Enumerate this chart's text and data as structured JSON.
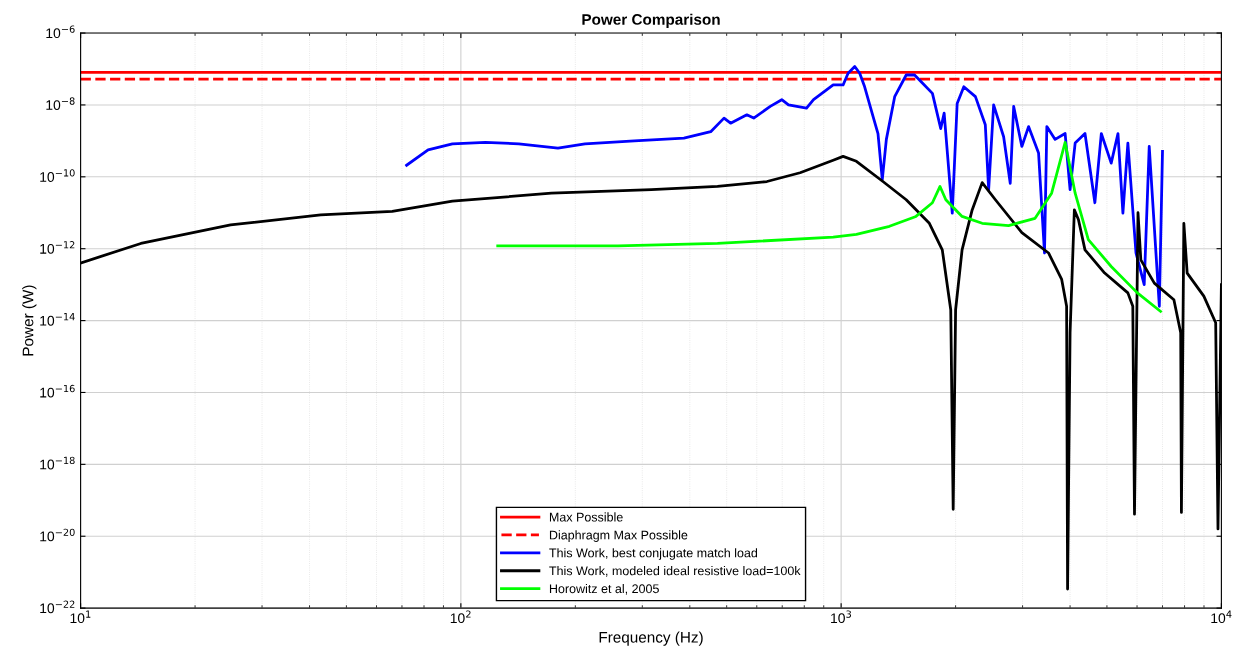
{
  "chart_data": {
    "type": "line",
    "title": "Power Comparison",
    "xlabel": "Frequency (Hz)",
    "ylabel": "Power (W)",
    "log": "xy",
    "grid": true,
    "legend": "bottom",
    "xlim": [
      10,
      10000
    ],
    "xticks": [
      {
        "value": 10,
        "label": "10$^{1}$"
      },
      {
        "value": 100,
        "label": "10$^{2}$"
      },
      {
        "value": 1000,
        "label": "10$^{3}$"
      },
      {
        "value": 10000,
        "label": "10$^{4}$"
      }
    ],
    "ylim": [
      1e-22,
      1e-06
    ],
    "yticks": [
      {
        "value": 1e-22,
        "label": "10$^{−22}$"
      },
      {
        "value": 1e-20,
        "label": "10$^{−20}$"
      },
      {
        "value": 1e-18,
        "label": "10$^{−18}$"
      },
      {
        "value": 1e-16,
        "label": "10$^{−16}$"
      },
      {
        "value": 1e-14,
        "label": "10$^{−14}$"
      },
      {
        "value": 1e-12,
        "label": "10$^{−12}$"
      },
      {
        "value": 1e-10,
        "label": "10$^{−10}$"
      },
      {
        "value": 1e-08,
        "label": "10$^{−8}$"
      },
      {
        "value": 1e-06,
        "label": "10$^{−6}$"
      }
    ],
    "ref_lines": [
      {
        "axis": "y",
        "value": 8e-08,
        "label": "Max Possible",
        "color": "#ff0000",
        "line_style": "solid"
      },
      {
        "axis": "y",
        "value": 5.2e-08,
        "label": "Diaphragm Max Possible",
        "color": "#ff0000",
        "line_style": "dashed"
      }
    ],
    "series": [
      {
        "name": "This Work, best conjugate match load",
        "color": "#0000ff",
        "x": [
          72,
          82,
          95,
          116,
          142,
          180,
          212,
          286,
          386,
          454,
          492,
          512,
          565,
          589,
          651,
          698,
          727,
          811,
          846,
          953,
          1012,
          1043,
          1086,
          1119,
          1153,
          1213,
          1250,
          1283,
          1315,
          1383,
          1483,
          1560,
          1638,
          1738,
          1828,
          1866,
          1960,
          2019,
          2102,
          2255,
          2394,
          2443,
          2518,
          2675,
          2784,
          2843,
          2987,
          3111,
          3305,
          3426,
          3475,
          3654,
          3882,
          4000,
          4125,
          4378,
          4648,
          4833,
          5131,
          5346,
          5508,
          5676,
          5962,
          6266,
          6459,
          6867,
          7000
        ],
        "values": [
          2.1e-10,
          5.6e-10,
          8.3e-10,
          9.1e-10,
          8.3e-10,
          6.3e-10,
          8.3e-10,
          1e-09,
          1.2e-09,
          1.8e-09,
          4.3e-09,
          3.1e-09,
          5.3e-09,
          4.3e-09,
          9.1e-09,
          1.4e-08,
          1e-08,
          8.1e-09,
          1.4e-08,
          3.6e-08,
          3.6e-08,
          7.6e-08,
          1.17e-07,
          7.6e-08,
          3.2e-08,
          4.8e-09,
          1.6e-09,
          8.3e-11,
          1.1e-09,
          1.7e-08,
          6.8e-08,
          6.8e-08,
          4e-08,
          2.1e-08,
          2.2e-09,
          5.9e-09,
          9.8e-12,
          1.1e-08,
          3.2e-08,
          1.7e-08,
          2.8e-09,
          4.4e-11,
          1e-08,
          1.3e-09,
          6.6e-11,
          9.1e-09,
          7e-10,
          2.5e-09,
          4.6e-10,
          7.6e-13,
          2.5e-09,
          1.1e-09,
          1.6e-09,
          4.4e-11,
          8.7e-10,
          1.6e-09,
          1.9e-11,
          1.6e-09,
          2.4e-10,
          1.6e-09,
          9.8e-12,
          8.7e-10,
          7.6e-13,
          1e-13,
          7e-10,
          2.5e-14,
          5.1e-10
        ]
      },
      {
        "name": "This Work, modeled ideal resistive load=100k",
        "color": "#000000",
        "x": [
          10,
          14.4,
          24.8,
          42.8,
          66,
          95,
          173,
          317,
          473,
          638,
          780,
          953,
          1012,
          1097,
          1288,
          1483,
          1706,
          1845,
          1942,
          1971,
          2000,
          2080,
          2211,
          2349,
          2545,
          2987,
          3511,
          3802,
          3917,
          3940,
          4000,
          4105,
          4207,
          4378,
          4932,
          5676,
          5848,
          5908,
          6035,
          6139,
          6662,
          7500,
          7816,
          7850,
          7966,
          8128,
          8990,
          9660,
          9795,
          10000
        ],
        "values": [
          4e-13,
          1.4e-12,
          4.6e-12,
          8.7e-12,
          1.1e-11,
          2.1e-11,
          3.5e-11,
          4.4e-11,
          5.4e-11,
          7.4e-11,
          1.3e-10,
          2.9e-10,
          3.7e-10,
          2.7e-10,
          7.4e-11,
          2.3e-11,
          5.1e-12,
          9.3e-13,
          2e-14,
          5.6e-20,
          2e-14,
          9.3e-13,
          1.2e-11,
          6.9e-11,
          2.3e-11,
          2.8e-12,
          7.6e-13,
          1.4e-13,
          2.5e-14,
          3.4e-22,
          4.6e-15,
          1.2e-11,
          6.5e-12,
          9.3e-13,
          2.1e-13,
          5.9e-14,
          2.5e-14,
          4.1e-20,
          1e-11,
          4.9e-13,
          1.1e-13,
          3.8e-14,
          4.6e-15,
          4.6e-20,
          5.1e-12,
          2.1e-13,
          4.8e-14,
          8.7e-15,
          1.6e-20,
          1e-13
        ]
      },
      {
        "name": "Horowitz et al, 2005",
        "color": "#00ff00",
        "x": [
          125,
          259,
          473,
          953,
          1097,
          1340,
          1573,
          1738,
          1820,
          1885,
          2080,
          2349,
          2757,
          3236,
          3577,
          3882,
          4125,
          4467,
          5131,
          6012,
          6918
        ],
        "values": [
          1.2e-12,
          1.2e-12,
          1.4e-12,
          2.1e-12,
          2.5e-12,
          4.2e-12,
          7.9e-12,
          1.9e-11,
          5.4e-11,
          2.3e-11,
          7.9e-12,
          5.1e-12,
          4.4e-12,
          7e-12,
          3.5e-11,
          9.1e-10,
          3.5e-11,
          1.8e-12,
          3.2e-13,
          5.9e-14,
          1.8e-14
        ]
      }
    ]
  }
}
